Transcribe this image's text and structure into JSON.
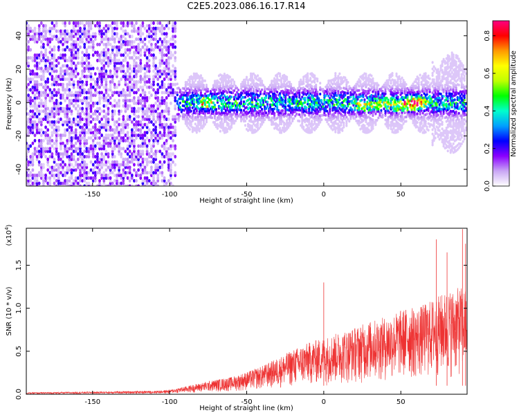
{
  "page_title": "C2E5.2023.086.16.17.R14",
  "chart_data": [
    {
      "type": "heatmap",
      "title": "C2E5.2023.086.16.17.R14",
      "xlabel": "Height of straight line (km)",
      "ylabel": "Frequency (Hz)",
      "xlim": [
        -193,
        93
      ],
      "ylim": [
        -50,
        49
      ],
      "x_ticks": [
        -150,
        -100,
        -50,
        0,
        50
      ],
      "y_ticks": [
        -40,
        -20,
        0,
        20,
        40
      ],
      "colorbar": {
        "label": "Normalized spectral amplitude",
        "range": [
          0,
          0.88
        ],
        "ticks": [
          "0.0",
          "0.2",
          "0.4",
          "0.6",
          "0.8"
        ],
        "colormap": [
          "#ffffff",
          "#c9a6f5",
          "#8a00ff",
          "#0000ff",
          "#00a0ff",
          "#00ffcc",
          "#00ff00",
          "#c0ff00",
          "#ffff00",
          "#ff9900",
          "#ff0000",
          "#ff0080"
        ]
      },
      "regions": [
        {
          "x_range": [
            -193,
            -95
          ],
          "freq_spread": [
            -50,
            49
          ],
          "amplitude": "low (0.0-0.15)",
          "description_only": true
        },
        {
          "x_range": [
            -95,
            93
          ],
          "freq_spread": [
            -10,
            10
          ],
          "amplitude": "0.1-0.8",
          "peak": {
            "x": 60,
            "y": 0,
            "value": 0.8
          }
        }
      ],
      "axes_color": "#000000"
    },
    {
      "type": "line",
      "xlabel": "Height of straight line (km)",
      "ylabel": "SNR (10 * v/v)",
      "y_multiplier": "(x10",
      "y_multiplier_exp": "4",
      "xlim": [
        -193,
        93
      ],
      "ylim": [
        0,
        1.93
      ],
      "x_ticks": [
        -150,
        -100,
        -50,
        0,
        50
      ],
      "y_ticks": [
        "0.0",
        "0.5",
        "1.0",
        "1.5"
      ],
      "series": [
        {
          "color": "#ee3333",
          "envelope": {
            "x": [
              -193,
              -150,
              -110,
              -100,
              -90,
              -80,
              -70,
              -60,
              -50,
              -40,
              -30,
              -20,
              -10,
              0,
              10,
              20,
              30,
              40,
              50,
              55,
              60,
              65,
              70,
              80,
              90,
              93
            ],
            "y_max": [
              0.02,
              0.03,
              0.04,
              0.05,
              0.09,
              0.13,
              0.17,
              0.2,
              0.26,
              0.33,
              0.42,
              0.52,
              0.6,
              0.66,
              0.72,
              0.78,
              0.85,
              0.9,
              0.98,
              1.02,
              1.0,
              1.05,
              1.1,
              1.2,
              1.25,
              1.2
            ]
          },
          "peaks": [
            {
              "x": 0,
              "y": 1.3
            },
            {
              "x": 73,
              "y": 1.8
            },
            {
              "x": 90,
              "y": 1.92
            },
            {
              "x": 80,
              "y": 1.65
            },
            {
              "x": 92,
              "y": 1.75
            }
          ]
        }
      ]
    }
  ]
}
